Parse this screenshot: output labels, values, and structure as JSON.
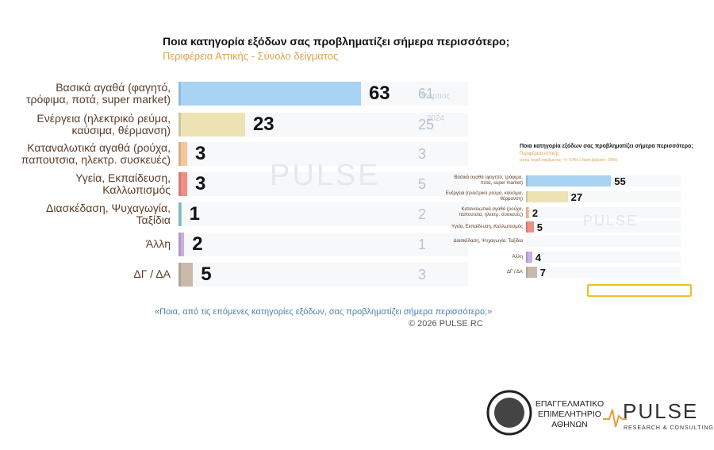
{
  "chart_data": [
    {
      "type": "bar",
      "title": "Ποια κατηγορία εξόδων σας προβληματίζει σήμερα περισσότερο;",
      "subtitle": "Περιφέρεια Αττικής - Σύνολο δείγματος",
      "categories": [
        "Βασικά αγαθά (φαγητό, τρόφιμα, ποτά, super market)",
        "Ενέργεια (ηλεκτρικό ρεύμα, καύσιμα, θέρμανση)",
        "Καταναλωτικά αγαθά (ρούχα, παπουτσια, ηλεκτρ. συσκευές)",
        "Υγεία, Εκπαίδευση, Καλλωπισμός",
        "Διασκέδαση, Ψυχαγωγία, Ταξίδια",
        "Άλλη",
        "ΔΓ / ΔΑ"
      ],
      "series": [
        {
          "colors": [
            "#a9d3f2",
            "#ece2b4",
            "#f5c69c",
            "#f28d84",
            "#93d1d2",
            "#c9aee3",
            "#c9b9a9"
          ],
          "values": [
            63,
            23,
            3,
            3,
            1,
            2,
            5
          ]
        },
        {
          "name": "Μάρτιος 2024",
          "color": "#b7c3cf",
          "values": [
            61,
            25,
            3,
            5,
            2,
            1,
            3
          ]
        }
      ],
      "footnote": "«Ποια, από τις επόμενες κατηγορίες εξόδων, σας προβληματίζει σήμερα περισσότερο;»",
      "copyright": "©  2026  PULSE RC",
      "watermark": "PULSE"
    },
    {
      "type": "bar",
      "title": "Ποια κατηγορία εξόδων σας προβληματίζει σήμερα περισσότερο;",
      "subtitle": "Περιφέρεια Αττικής",
      "note": "(εκτιμ.περιθ.σφάλματος: +/- 9,8% / διαστ.βεβαιοτ.: 95%)",
      "categories": [
        "Βασικά αγαθά (φαγητό, τρόφιμα, ποτά, super market)",
        "Ενέργεια (ηλεκτρικό ρεύμα, καύσιμα, θέρμανση)",
        "Καταναλωτικά αγαθά (ρούχα, παπουτσια, ηλεκτρ. συσκευές)",
        "Υγεία, Εκπαίδευση, Καλλωπισμός",
        "Διασκέδαση, Ψυχαγωγία, Ταξίδια",
        "Άλλη",
        "ΔΓ / ΔΑ"
      ],
      "series": [
        {
          "colors": [
            "#a9d3f2",
            "#ece2b4",
            "#f5c69c",
            "#f28d84",
            "#93d1d2",
            "#c9aee3",
            "#c9b9a9"
          ],
          "values": [
            55,
            27,
            2,
            5,
            null,
            4,
            7
          ]
        }
      ],
      "watermark": "PULSE"
    }
  ],
  "logos": {
    "chamber": "ΕΠΑΓΓΕΛΜΑΤΙΚΟ ΕΠΙΜΕΛΗΤΗΡΙΟ ΑΘΗΝΩΝ",
    "pulse": "PULSE",
    "pulse_sub": "RESEARCH & CONSULTING"
  }
}
